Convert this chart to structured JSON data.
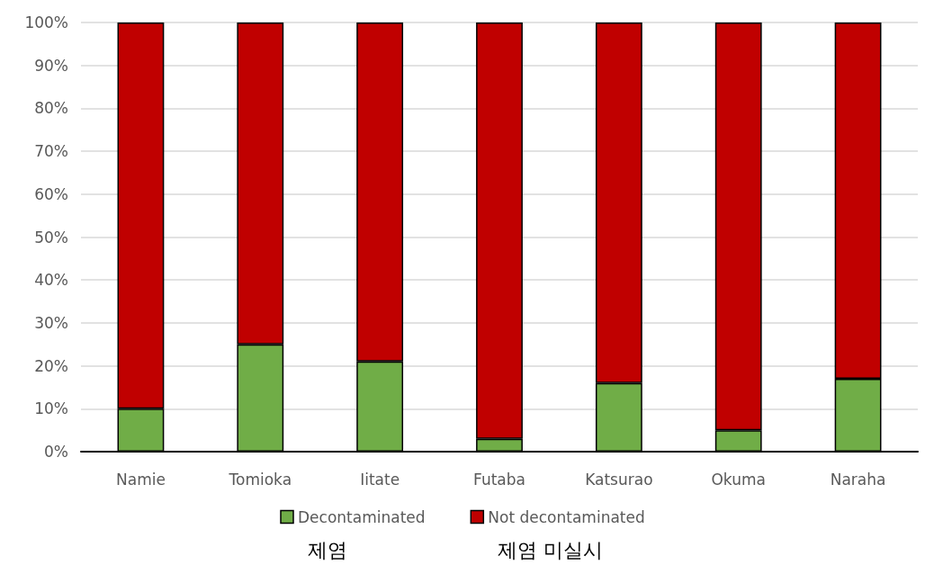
{
  "chart_data": {
    "type": "bar",
    "stacked": true,
    "categories": [
      "Namie",
      "Tomioka",
      "Iitate",
      "Futaba",
      "Katsurao",
      "Okuma",
      "Naraha"
    ],
    "series": [
      {
        "name": "Decontaminated",
        "color": "#70ad47",
        "values": [
          10,
          25,
          21,
          3,
          16,
          5,
          17
        ]
      },
      {
        "name": "Not decontaminated",
        "color": "#c00000",
        "values": [
          90,
          75,
          79,
          97,
          84,
          95,
          83
        ]
      }
    ],
    "ylim": [
      0,
      100
    ],
    "yticks": [
      {
        "value": 0,
        "label": "0%"
      },
      {
        "value": 10,
        "label": "10%"
      },
      {
        "value": 20,
        "label": "20%"
      },
      {
        "value": 30,
        "label": "30%"
      },
      {
        "value": 40,
        "label": "40%"
      },
      {
        "value": 50,
        "label": "50%"
      },
      {
        "value": 60,
        "label": "60%"
      },
      {
        "value": 70,
        "label": "70%"
      },
      {
        "value": 80,
        "label": "80%"
      },
      {
        "value": 90,
        "label": "90%"
      },
      {
        "value": 100,
        "label": "100%"
      }
    ],
    "grid": "y",
    "legend": "bottom",
    "annotations": [
      "제염",
      "제염 미실시"
    ]
  }
}
